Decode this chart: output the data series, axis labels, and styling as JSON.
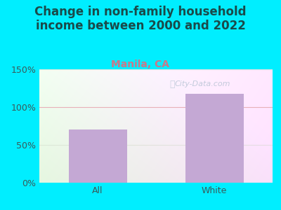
{
  "title": "Change in non-family household\nincome between 2000 and 2022",
  "subtitle": "Manila, CA",
  "categories": [
    "All",
    "White"
  ],
  "values": [
    70,
    118
  ],
  "bar_color": "#c4a8d4",
  "ylim": [
    0,
    150
  ],
  "yticks": [
    0,
    50,
    100,
    150
  ],
  "ytick_labels": [
    "0%",
    "50%",
    "100%",
    "150%"
  ],
  "title_color": "#1a4a4a",
  "subtitle_color": "#cc7788",
  "background_outer": "#00eeff",
  "grid_color": "#e8b0b8",
  "watermark": "City-Data.com",
  "title_fontsize": 12,
  "subtitle_fontsize": 10,
  "tick_color": "#3a5a5a"
}
